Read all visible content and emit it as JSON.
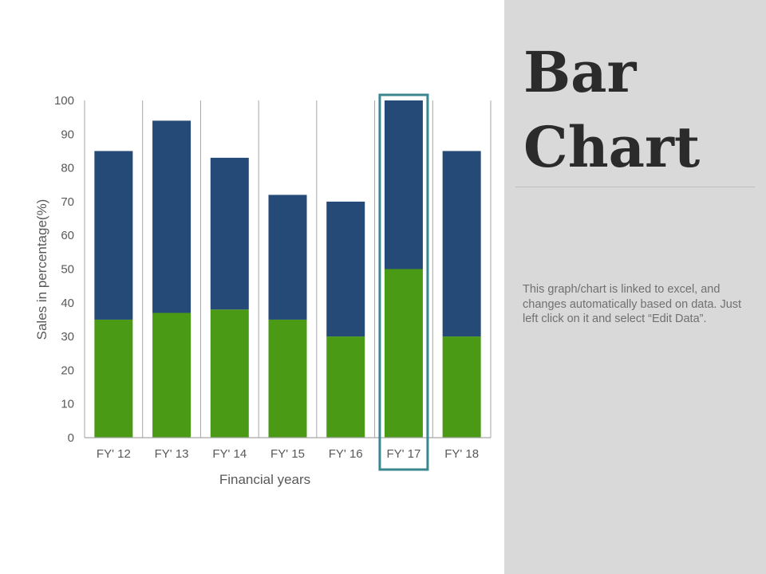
{
  "slide": {
    "title": "Bar\nChart",
    "description": "This graph/chart is linked to excel, and changes automatically based on data. Just left click on it and select “Edit Data”."
  },
  "colors": {
    "series_1": "#4a9a15",
    "series_2": "#264a78",
    "highlight": "#3b8790",
    "side_panel": "#d9d9d9",
    "axis_text": "#595959",
    "grid": "#a6a6a6"
  },
  "chart_data": {
    "type": "bar",
    "stacked": true,
    "categories": [
      "FY' 12",
      "FY' 13",
      "FY' 14",
      "FY' 15",
      "FY' 16",
      "FY' 17",
      "FY' 18"
    ],
    "series": [
      {
        "values": [
          35,
          37,
          38,
          35,
          30,
          50,
          30
        ]
      },
      {
        "values": [
          50,
          57,
          45,
          37,
          40,
          50,
          55
        ]
      }
    ],
    "y_ticks": [
      0,
      10,
      20,
      30,
      40,
      50,
      60,
      70,
      80,
      90,
      100
    ],
    "ylim": [
      0,
      100
    ],
    "xlabel": "Financial years",
    "ylabel": "Sales in percentage(%)",
    "highlighted_category": "FY' 17",
    "grid": "vertical"
  }
}
